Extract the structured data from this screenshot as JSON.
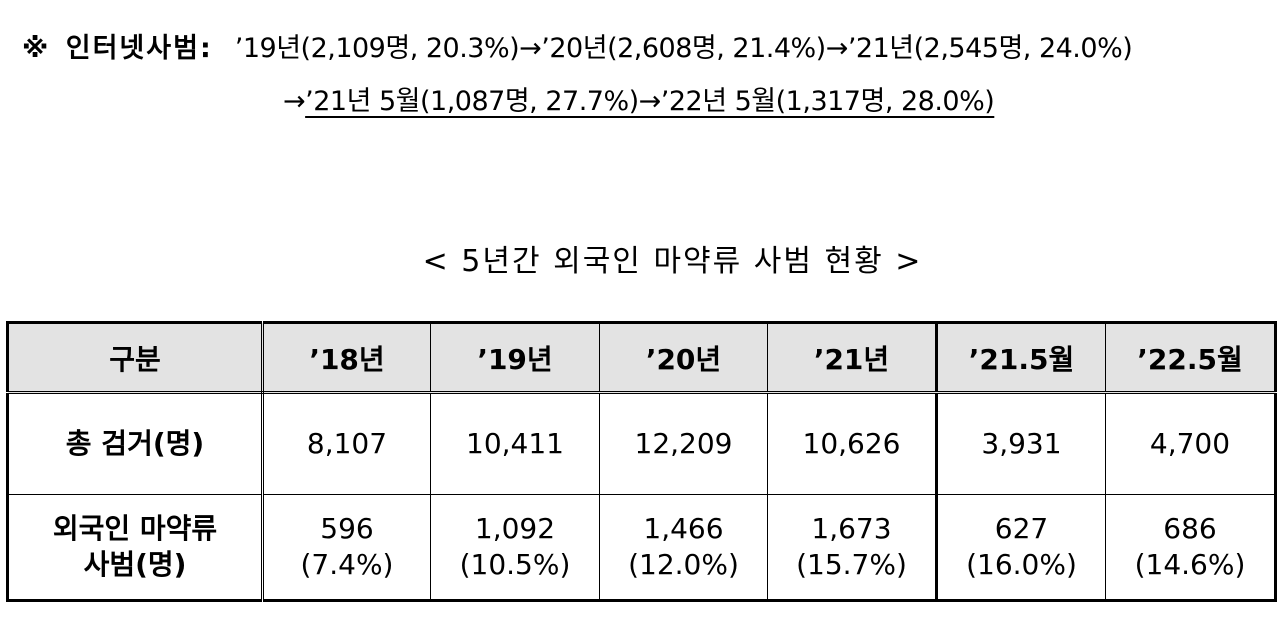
{
  "note": {
    "mark": "※",
    "label": "인터넷사범:",
    "line1": "’19년(2,109명, 20.3%)→’20년(2,608명, 21.4%)→’21년(2,545명, 24.0%)",
    "line2_arrow": "→",
    "line2_underlined": "’21년 5월(1,087명, 27.7%)→’22년 5월(1,317명, 28.0%)"
  },
  "table_title": "< 5년간 외국인 마약류 사범 현황 >",
  "table": {
    "headers": [
      "구분",
      "’18년",
      "’19년",
      "’20년",
      "’21년",
      "’21.5월",
      "’22.5월"
    ],
    "rows": [
      {
        "label": "총 검거(명)",
        "values": [
          "8,107",
          "10,411",
          "12,209",
          "10,626",
          "3,931",
          "4,700"
        ]
      },
      {
        "label_line1": "외국인 마약류",
        "label_line2": "사범(명)",
        "values": [
          "596",
          "1,092",
          "1,466",
          "1,673",
          "627",
          "686"
        ],
        "shares": [
          "(7.4%)",
          "(10.5%)",
          "(12.0%)",
          "(15.7%)",
          "(16.0%)",
          "(14.6%)"
        ]
      }
    ]
  }
}
